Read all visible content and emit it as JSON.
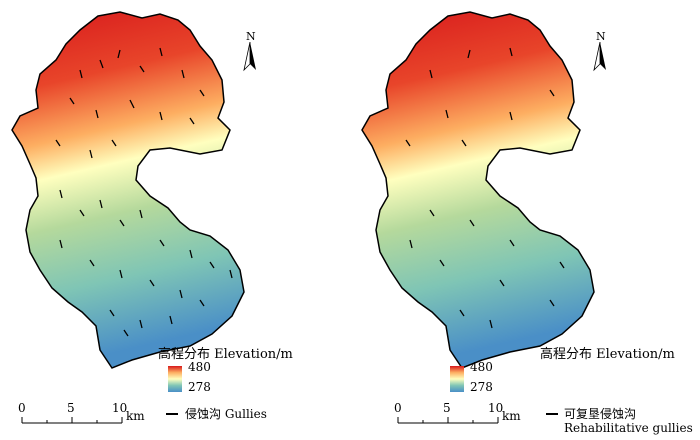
{
  "panels": [
    {
      "legend_title": "高程分布 Elevation/m",
      "elevation_max": "480",
      "elevation_min": "278",
      "gully_label": "侵蚀沟 Gullies",
      "gully_label_line2": "",
      "scale_ticks": [
        "0",
        "5",
        "10"
      ],
      "scale_unit": "km",
      "north_label": "N"
    },
    {
      "legend_title": "高程分布 Elevation/m",
      "elevation_max": "480",
      "elevation_min": "278",
      "gully_label": "可复垦侵蚀沟",
      "gully_label_line2": "Rehabilitative gullies",
      "scale_ticks": [
        "0",
        "5",
        "10"
      ],
      "scale_unit": "km",
      "north_label": "N"
    }
  ],
  "colors": {
    "high": "#d7191c",
    "mid_high": "#fdae61",
    "mid": "#ffffbf",
    "mid_low": "#7fc5b5",
    "low": "#4a8fc7",
    "gully": "#000000"
  }
}
